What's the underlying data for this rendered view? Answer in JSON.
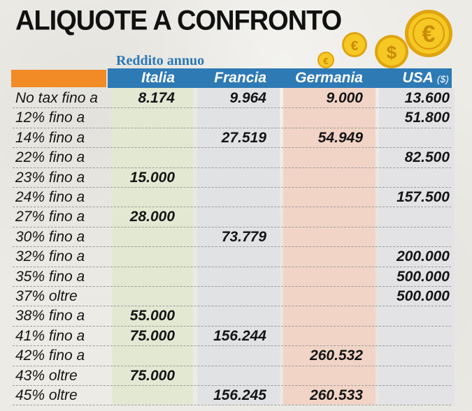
{
  "title": "ALIQUOTE A CONFRONTO",
  "subtitle": "Reddito annuo",
  "colors": {
    "header_blue": "#2e7ab5",
    "subtitle_blue": "#2b78b5",
    "orange": "#f28a26",
    "italia_bg": "#e3e8d3",
    "francia_bg": "#e1e2e4",
    "germania_bg": "#f1d4c6",
    "usa_bg": "#e3e3e6",
    "coin_gold": "#f2c21a"
  },
  "icons": [
    "euro-coin-icon",
    "dollar-coin-icon"
  ],
  "columns": [
    {
      "key": "italia",
      "label": "Italia",
      "unit": ""
    },
    {
      "key": "francia",
      "label": "Francia",
      "unit": ""
    },
    {
      "key": "germania",
      "label": "Germania",
      "unit": ""
    },
    {
      "key": "usa",
      "label": "USA",
      "unit": "($)"
    }
  ],
  "rows": [
    {
      "label": "No tax fino a",
      "italia": "8.174",
      "francia": "9.964",
      "germania": "9.000",
      "usa": "13.600"
    },
    {
      "label": "12% fino a",
      "italia": "",
      "francia": "",
      "germania": "",
      "usa": "51.800"
    },
    {
      "label": "14% fino a",
      "italia": "",
      "francia": "27.519",
      "germania": "54.949",
      "usa": ""
    },
    {
      "label": "22% fino a",
      "italia": "",
      "francia": "",
      "germania": "",
      "usa": "82.500"
    },
    {
      "label": "23% fino a",
      "italia": "15.000",
      "francia": "",
      "germania": "",
      "usa": ""
    },
    {
      "label": "24% fino a",
      "italia": "",
      "francia": "",
      "germania": "",
      "usa": "157.500"
    },
    {
      "label": "27% fino a",
      "italia": "28.000",
      "francia": "",
      "germania": "",
      "usa": ""
    },
    {
      "label": "30% fino a",
      "italia": "",
      "francia": "73.779",
      "germania": "",
      "usa": ""
    },
    {
      "label": "32% fino a",
      "italia": "",
      "francia": "",
      "germania": "",
      "usa": "200.000"
    },
    {
      "label": "35% fino a",
      "italia": "",
      "francia": "",
      "germania": "",
      "usa": "500.000"
    },
    {
      "label": "37% oltre",
      "italia": "",
      "francia": "",
      "germania": "",
      "usa": "500.000"
    },
    {
      "label": "38% fino a",
      "italia": "55.000",
      "francia": "",
      "germania": "",
      "usa": ""
    },
    {
      "label": "41% fino a",
      "italia": "75.000",
      "francia": "156.244",
      "germania": "",
      "usa": ""
    },
    {
      "label": "42% fino a",
      "italia": "",
      "francia": "",
      "germania": "260.532",
      "usa": ""
    },
    {
      "label": "43% oltre",
      "italia": "75.000",
      "francia": "",
      "germania": "",
      "usa": ""
    },
    {
      "label": "45% oltre",
      "italia": "",
      "francia": "156.245",
      "germania": "260.533",
      "usa": ""
    }
  ]
}
